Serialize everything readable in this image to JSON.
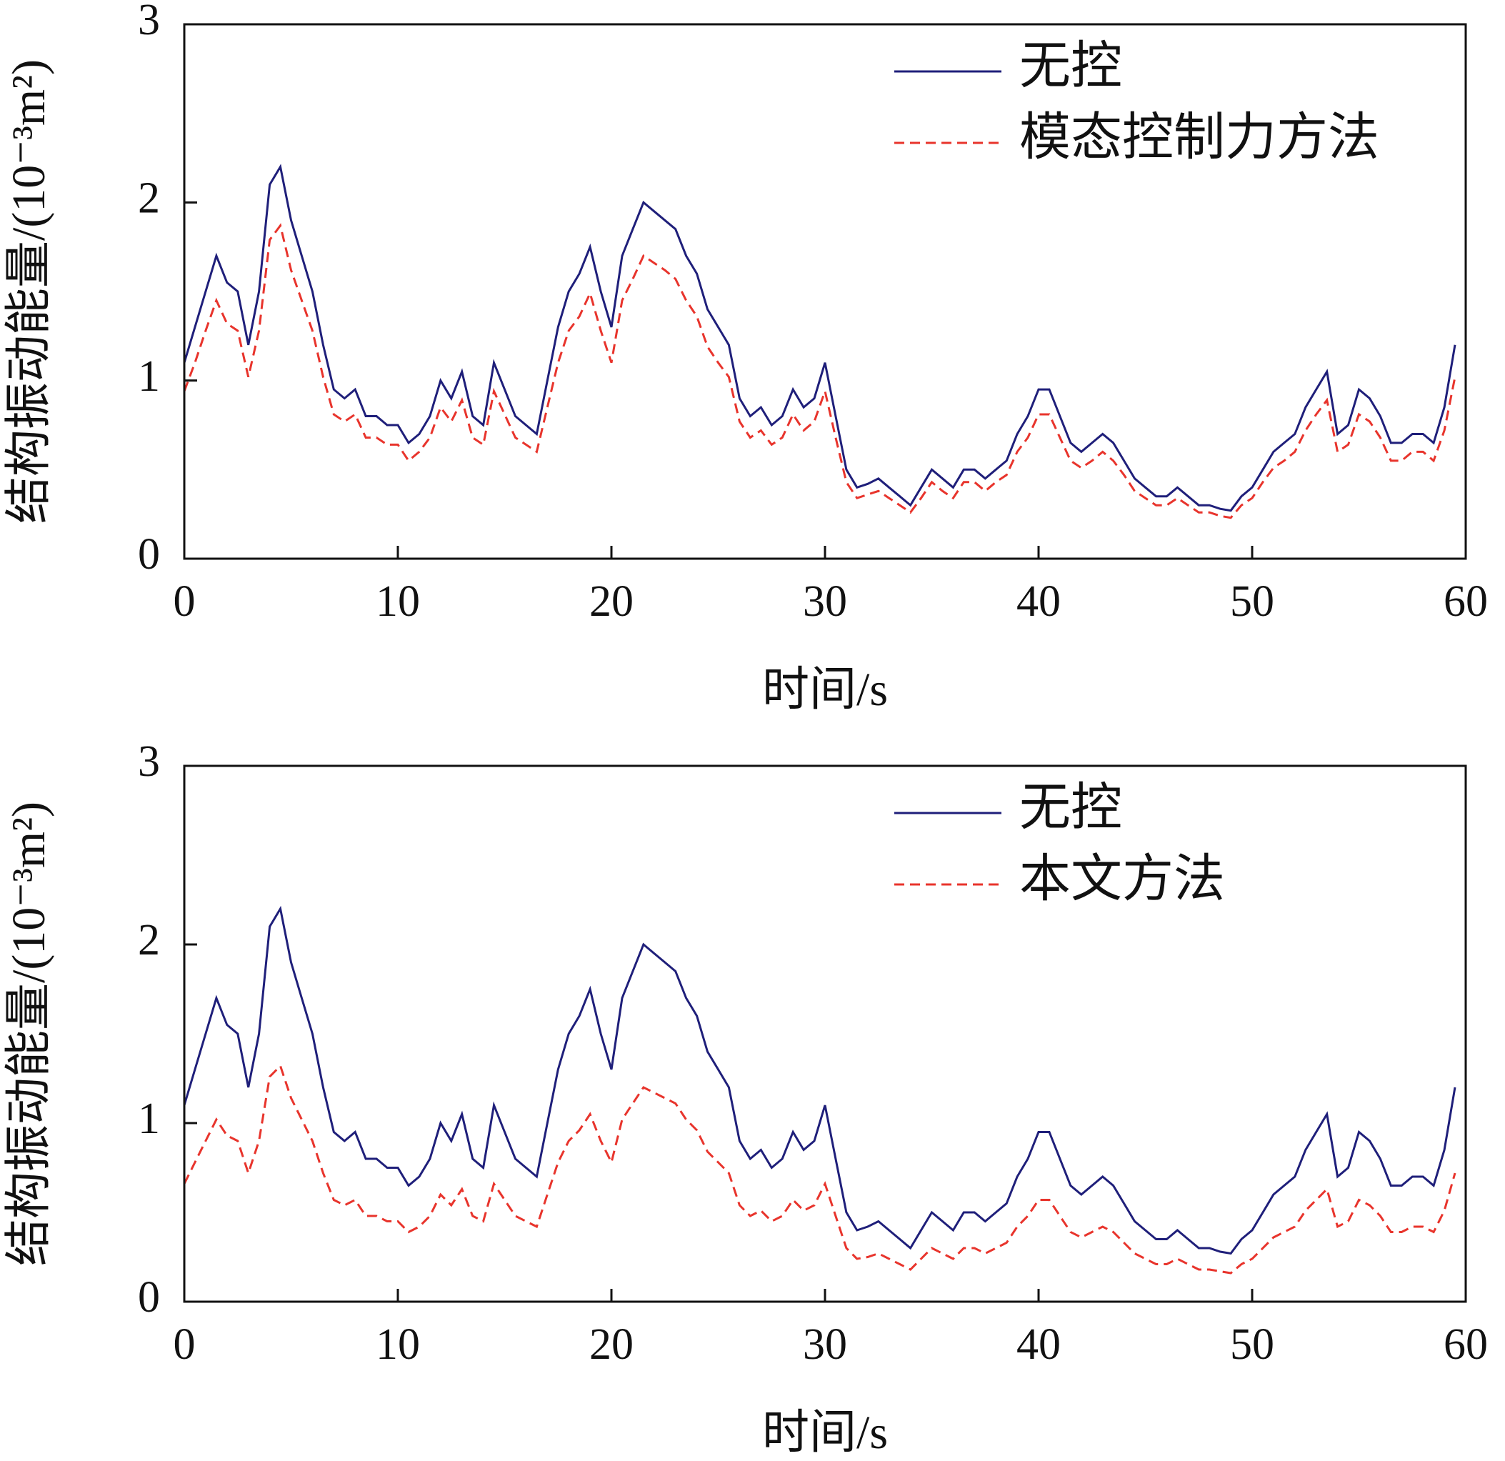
{
  "chart_data": [
    {
      "type": "line",
      "xlabel": "时间/s",
      "ylabel": "结构振动能量/(10⁻³m²)",
      "xlim": [
        0,
        60
      ],
      "xticks": [
        0,
        10,
        20,
        30,
        40,
        50,
        60
      ],
      "ylim": [
        0,
        3
      ],
      "yticks": [
        0,
        1,
        2,
        3
      ],
      "grid": false,
      "legend": "upper right",
      "x": [
        0,
        0.5,
        1,
        1.5,
        2,
        2.5,
        3,
        3.5,
        4,
        4.5,
        5,
        5.5,
        6,
        6.5,
        7,
        7.5,
        8,
        8.5,
        9,
        9.5,
        10,
        10.5,
        11,
        11.5,
        12,
        12.5,
        13,
        13.5,
        14,
        14.5,
        15,
        15.5,
        16,
        16.5,
        17,
        17.5,
        18,
        18.5,
        19,
        19.5,
        20,
        20.5,
        21,
        21.5,
        22,
        22.5,
        23,
        23.5,
        24,
        24.5,
        25,
        25.5,
        26,
        26.5,
        27,
        27.5,
        28,
        28.5,
        29,
        29.5,
        30,
        30.5,
        31,
        31.5,
        32,
        32.5,
        33,
        33.5,
        34,
        34.5,
        35,
        35.5,
        36,
        36.5,
        37,
        37.5,
        38,
        38.5,
        39,
        39.5,
        40,
        40.5,
        41,
        41.5,
        42,
        42.5,
        43,
        43.5,
        44,
        44.5,
        45,
        45.5,
        46,
        46.5,
        47,
        47.5,
        48,
        48.5,
        49,
        49.5,
        50,
        50.5,
        51,
        51.5,
        52,
        52.5,
        53,
        53.5,
        54,
        54.5,
        55,
        55.5,
        56,
        56.5,
        57,
        57.5,
        58,
        58.5,
        59,
        59.5
      ],
      "series": [
        {
          "name": "无控",
          "color": "#1f1f7a",
          "dashed": false,
          "values": [
            1.1,
            1.3,
            1.5,
            1.7,
            1.55,
            1.5,
            1.2,
            1.5,
            2.1,
            2.2,
            1.9,
            1.7,
            1.5,
            1.2,
            0.95,
            0.9,
            0.95,
            0.8,
            0.8,
            0.75,
            0.75,
            0.65,
            0.7,
            0.8,
            1.0,
            0.9,
            1.05,
            0.8,
            0.75,
            1.1,
            0.95,
            0.8,
            0.75,
            0.7,
            1.0,
            1.3,
            1.5,
            1.6,
            1.75,
            1.5,
            1.3,
            1.7,
            1.85,
            2.0,
            1.95,
            1.9,
            1.85,
            1.7,
            1.6,
            1.4,
            1.3,
            1.2,
            0.9,
            0.8,
            0.85,
            0.75,
            0.8,
            0.95,
            0.85,
            0.9,
            1.1,
            0.8,
            0.5,
            0.4,
            0.42,
            0.45,
            0.4,
            0.35,
            0.3,
            0.4,
            0.5,
            0.45,
            0.4,
            0.5,
            0.5,
            0.45,
            0.5,
            0.55,
            0.7,
            0.8,
            0.95,
            0.95,
            0.8,
            0.65,
            0.6,
            0.65,
            0.7,
            0.65,
            0.55,
            0.45,
            0.4,
            0.35,
            0.35,
            0.4,
            0.35,
            0.3,
            0.3,
            0.28,
            0.27,
            0.35,
            0.4,
            0.5,
            0.6,
            0.65,
            0.7,
            0.85,
            0.95,
            1.05,
            0.7,
            0.75,
            0.95,
            0.9,
            0.8,
            0.65,
            0.65,
            0.7,
            0.7,
            0.65,
            0.85,
            1.2
          ]
        },
        {
          "name": "模态控制力方法",
          "color": "#e8342c",
          "dashed": true,
          "values": [
            0.94,
            1.1,
            1.28,
            1.45,
            1.32,
            1.28,
            1.02,
            1.28,
            1.79,
            1.87,
            1.62,
            1.45,
            1.28,
            1.02,
            0.81,
            0.77,
            0.81,
            0.68,
            0.68,
            0.64,
            0.64,
            0.55,
            0.6,
            0.68,
            0.85,
            0.77,
            0.89,
            0.68,
            0.64,
            0.94,
            0.81,
            0.68,
            0.64,
            0.6,
            0.85,
            1.1,
            1.28,
            1.36,
            1.49,
            1.28,
            1.1,
            1.45,
            1.57,
            1.7,
            1.66,
            1.62,
            1.57,
            1.45,
            1.36,
            1.19,
            1.1,
            1.02,
            0.77,
            0.68,
            0.72,
            0.64,
            0.68,
            0.81,
            0.72,
            0.77,
            0.94,
            0.68,
            0.43,
            0.34,
            0.36,
            0.38,
            0.34,
            0.3,
            0.26,
            0.34,
            0.43,
            0.38,
            0.34,
            0.43,
            0.43,
            0.38,
            0.43,
            0.47,
            0.6,
            0.68,
            0.81,
            0.81,
            0.68,
            0.55,
            0.51,
            0.55,
            0.6,
            0.55,
            0.47,
            0.38,
            0.34,
            0.3,
            0.3,
            0.34,
            0.3,
            0.26,
            0.26,
            0.24,
            0.23,
            0.3,
            0.34,
            0.43,
            0.51,
            0.55,
            0.6,
            0.72,
            0.81,
            0.89,
            0.6,
            0.64,
            0.81,
            0.77,
            0.68,
            0.55,
            0.55,
            0.6,
            0.6,
            0.55,
            0.72,
            1.02
          ]
        }
      ]
    },
    {
      "type": "line",
      "xlabel": "时间/s",
      "ylabel": "结构振动能量/(10⁻³m²)",
      "xlim": [
        0,
        60
      ],
      "xticks": [
        0,
        10,
        20,
        30,
        40,
        50,
        60
      ],
      "ylim": [
        0,
        3
      ],
      "yticks": [
        0,
        1,
        2,
        3
      ],
      "grid": false,
      "legend": "upper right",
      "x": [
        0,
        0.5,
        1,
        1.5,
        2,
        2.5,
        3,
        3.5,
        4,
        4.5,
        5,
        5.5,
        6,
        6.5,
        7,
        7.5,
        8,
        8.5,
        9,
        9.5,
        10,
        10.5,
        11,
        11.5,
        12,
        12.5,
        13,
        13.5,
        14,
        14.5,
        15,
        15.5,
        16,
        16.5,
        17,
        17.5,
        18,
        18.5,
        19,
        19.5,
        20,
        20.5,
        21,
        21.5,
        22,
        22.5,
        23,
        23.5,
        24,
        24.5,
        25,
        25.5,
        26,
        26.5,
        27,
        27.5,
        28,
        28.5,
        29,
        29.5,
        30,
        30.5,
        31,
        31.5,
        32,
        32.5,
        33,
        33.5,
        34,
        34.5,
        35,
        35.5,
        36,
        36.5,
        37,
        37.5,
        38,
        38.5,
        39,
        39.5,
        40,
        40.5,
        41,
        41.5,
        42,
        42.5,
        43,
        43.5,
        44,
        44.5,
        45,
        45.5,
        46,
        46.5,
        47,
        47.5,
        48,
        48.5,
        49,
        49.5,
        50,
        50.5,
        51,
        51.5,
        52,
        52.5,
        53,
        53.5,
        54,
        54.5,
        55,
        55.5,
        56,
        56.5,
        57,
        57.5,
        58,
        58.5,
        59,
        59.5
      ],
      "series": [
        {
          "name": "无控",
          "color": "#1f1f7a",
          "dashed": false,
          "values": [
            1.1,
            1.3,
            1.5,
            1.7,
            1.55,
            1.5,
            1.2,
            1.5,
            2.1,
            2.2,
            1.9,
            1.7,
            1.5,
            1.2,
            0.95,
            0.9,
            0.95,
            0.8,
            0.8,
            0.75,
            0.75,
            0.65,
            0.7,
            0.8,
            1.0,
            0.9,
            1.05,
            0.8,
            0.75,
            1.1,
            0.95,
            0.8,
            0.75,
            0.7,
            1.0,
            1.3,
            1.5,
            1.6,
            1.75,
            1.5,
            1.3,
            1.7,
            1.85,
            2.0,
            1.95,
            1.9,
            1.85,
            1.7,
            1.6,
            1.4,
            1.3,
            1.2,
            0.9,
            0.8,
            0.85,
            0.75,
            0.8,
            0.95,
            0.85,
            0.9,
            1.1,
            0.8,
            0.5,
            0.4,
            0.42,
            0.45,
            0.4,
            0.35,
            0.3,
            0.4,
            0.5,
            0.45,
            0.4,
            0.5,
            0.5,
            0.45,
            0.5,
            0.55,
            0.7,
            0.8,
            0.95,
            0.95,
            0.8,
            0.65,
            0.6,
            0.65,
            0.7,
            0.65,
            0.55,
            0.45,
            0.4,
            0.35,
            0.35,
            0.4,
            0.35,
            0.3,
            0.3,
            0.28,
            0.27,
            0.35,
            0.4,
            0.5,
            0.6,
            0.65,
            0.7,
            0.85,
            0.95,
            1.05,
            0.7,
            0.75,
            0.95,
            0.9,
            0.8,
            0.65,
            0.65,
            0.7,
            0.7,
            0.65,
            0.85,
            1.2
          ]
        },
        {
          "name": "本文方法",
          "color": "#e8342c",
          "dashed": true,
          "values": [
            0.66,
            0.78,
            0.9,
            1.02,
            0.93,
            0.9,
            0.72,
            0.9,
            1.26,
            1.32,
            1.14,
            1.02,
            0.9,
            0.72,
            0.57,
            0.54,
            0.57,
            0.48,
            0.48,
            0.45,
            0.45,
            0.39,
            0.42,
            0.48,
            0.6,
            0.54,
            0.63,
            0.48,
            0.45,
            0.66,
            0.57,
            0.48,
            0.45,
            0.42,
            0.6,
            0.78,
            0.9,
            0.96,
            1.05,
            0.9,
            0.78,
            1.02,
            1.11,
            1.2,
            1.17,
            1.14,
            1.11,
            1.02,
            0.96,
            0.84,
            0.78,
            0.72,
            0.54,
            0.48,
            0.51,
            0.45,
            0.48,
            0.57,
            0.51,
            0.54,
            0.66,
            0.48,
            0.3,
            0.24,
            0.25,
            0.27,
            0.24,
            0.21,
            0.18,
            0.24,
            0.3,
            0.27,
            0.24,
            0.3,
            0.3,
            0.27,
            0.3,
            0.33,
            0.42,
            0.48,
            0.57,
            0.57,
            0.48,
            0.39,
            0.36,
            0.39,
            0.42,
            0.39,
            0.33,
            0.27,
            0.24,
            0.21,
            0.21,
            0.24,
            0.21,
            0.18,
            0.18,
            0.17,
            0.16,
            0.21,
            0.24,
            0.3,
            0.36,
            0.39,
            0.42,
            0.51,
            0.57,
            0.63,
            0.42,
            0.45,
            0.57,
            0.54,
            0.48,
            0.39,
            0.39,
            0.42,
            0.42,
            0.39,
            0.51,
            0.72
          ]
        }
      ]
    }
  ]
}
